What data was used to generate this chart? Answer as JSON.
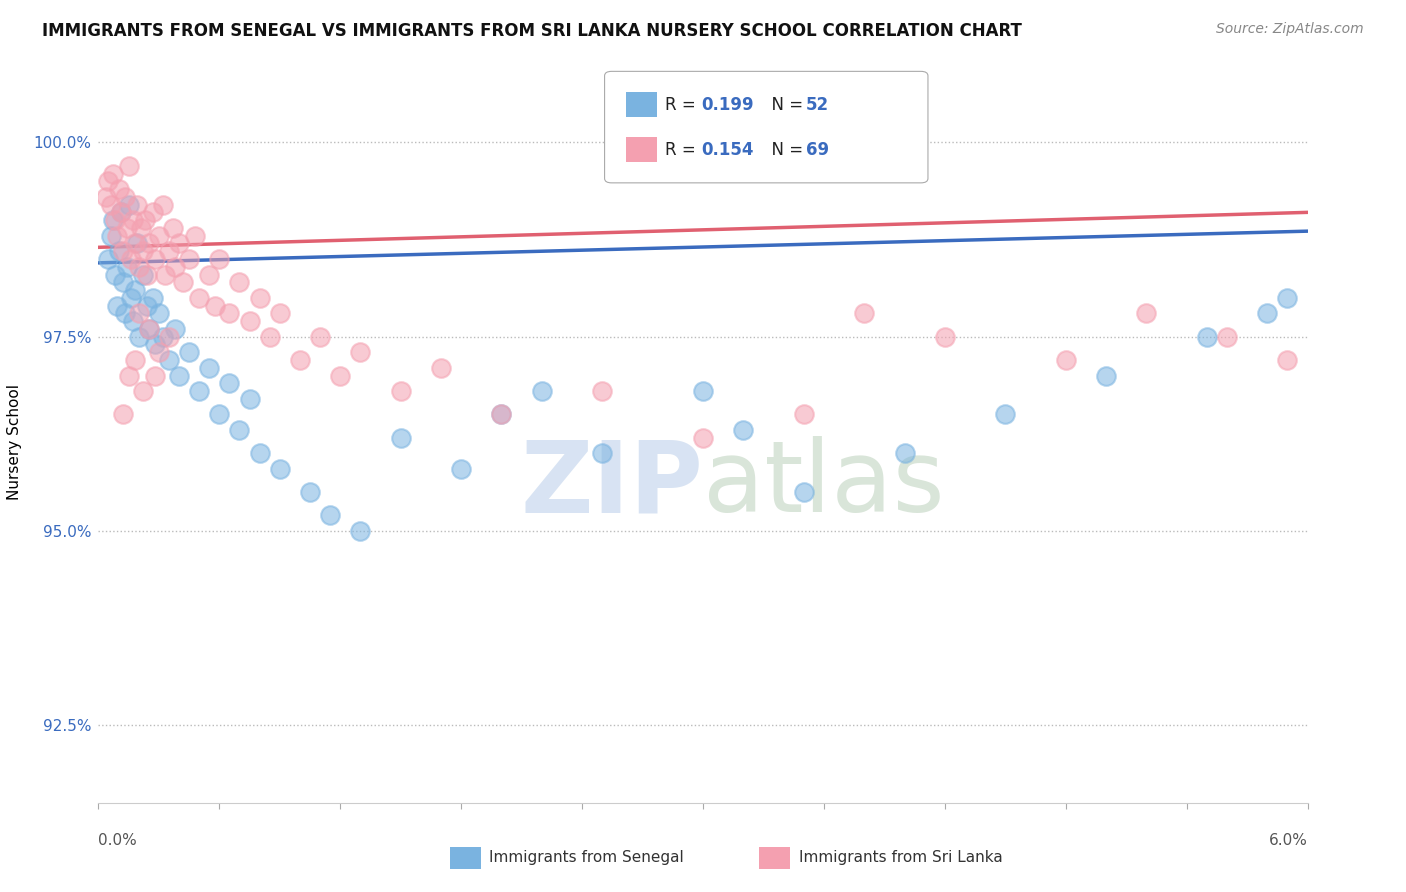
{
  "title": "IMMIGRANTS FROM SENEGAL VS IMMIGRANTS FROM SRI LANKA NURSERY SCHOOL CORRELATION CHART",
  "source": "Source: ZipAtlas.com",
  "ylabel": "Nursery School",
  "xlim": [
    0.0,
    6.0
  ],
  "ylim": [
    91.5,
    100.8
  ],
  "yticks": [
    92.5,
    95.0,
    97.5,
    100.0
  ],
  "ytick_labels": [
    "92.5%",
    "95.0%",
    "97.5%",
    "100.0%"
  ],
  "senegal_color": "#7ab3e0",
  "srilanka_color": "#f4a0b0",
  "senegal_line_color": "#3a6bbf",
  "srilanka_line_color": "#e06070",
  "senegal_R": "0.199",
  "senegal_N": "52",
  "srilanka_R": "0.154",
  "srilanka_N": "69",
  "senegal_x": [
    0.05,
    0.06,
    0.07,
    0.08,
    0.09,
    0.1,
    0.11,
    0.12,
    0.13,
    0.14,
    0.15,
    0.16,
    0.17,
    0.18,
    0.19,
    0.2,
    0.22,
    0.24,
    0.25,
    0.27,
    0.28,
    0.3,
    0.32,
    0.35,
    0.38,
    0.4,
    0.45,
    0.5,
    0.55,
    0.6,
    0.65,
    0.7,
    0.75,
    0.8,
    0.9,
    1.05,
    1.15,
    1.3,
    1.5,
    1.8,
    2.0,
    2.5,
    3.0,
    3.5,
    4.0,
    4.5,
    5.0,
    5.5,
    5.8,
    5.9,
    3.2,
    2.2
  ],
  "senegal_y": [
    98.5,
    98.8,
    99.0,
    98.3,
    97.9,
    98.6,
    99.1,
    98.2,
    97.8,
    98.4,
    99.2,
    98.0,
    97.7,
    98.1,
    98.7,
    97.5,
    98.3,
    97.9,
    97.6,
    98.0,
    97.4,
    97.8,
    97.5,
    97.2,
    97.6,
    97.0,
    97.3,
    96.8,
    97.1,
    96.5,
    96.9,
    96.3,
    96.7,
    96.0,
    95.8,
    95.5,
    95.2,
    95.0,
    96.2,
    95.8,
    96.5,
    96.0,
    96.8,
    95.5,
    96.0,
    96.5,
    97.0,
    97.5,
    97.8,
    98.0,
    96.3,
    96.8
  ],
  "srilanka_x": [
    0.04,
    0.05,
    0.06,
    0.07,
    0.08,
    0.09,
    0.1,
    0.11,
    0.12,
    0.13,
    0.14,
    0.15,
    0.16,
    0.17,
    0.18,
    0.19,
    0.2,
    0.21,
    0.22,
    0.23,
    0.24,
    0.25,
    0.27,
    0.28,
    0.3,
    0.32,
    0.33,
    0.35,
    0.37,
    0.38,
    0.4,
    0.42,
    0.45,
    0.48,
    0.5,
    0.55,
    0.58,
    0.6,
    0.65,
    0.7,
    0.75,
    0.8,
    0.85,
    0.9,
    1.0,
    1.1,
    1.2,
    1.3,
    1.5,
    1.7,
    2.0,
    2.5,
    3.0,
    3.5,
    3.8,
    4.2,
    4.8,
    5.2,
    5.6,
    5.9,
    0.35,
    0.28,
    0.22,
    0.18,
    0.12,
    0.25,
    0.3,
    0.2,
    0.15
  ],
  "srilanka_y": [
    99.3,
    99.5,
    99.2,
    99.6,
    99.0,
    98.8,
    99.4,
    99.1,
    98.6,
    99.3,
    98.9,
    99.7,
    98.5,
    99.0,
    98.7,
    99.2,
    98.4,
    98.9,
    98.6,
    99.0,
    98.3,
    98.7,
    99.1,
    98.5,
    98.8,
    99.2,
    98.3,
    98.6,
    98.9,
    98.4,
    98.7,
    98.2,
    98.5,
    98.8,
    98.0,
    98.3,
    97.9,
    98.5,
    97.8,
    98.2,
    97.7,
    98.0,
    97.5,
    97.8,
    97.2,
    97.5,
    97.0,
    97.3,
    96.8,
    97.1,
    96.5,
    96.8,
    96.2,
    96.5,
    97.8,
    97.5,
    97.2,
    97.8,
    97.5,
    97.2,
    97.5,
    97.0,
    96.8,
    97.2,
    96.5,
    97.6,
    97.3,
    97.8,
    97.0
  ]
}
